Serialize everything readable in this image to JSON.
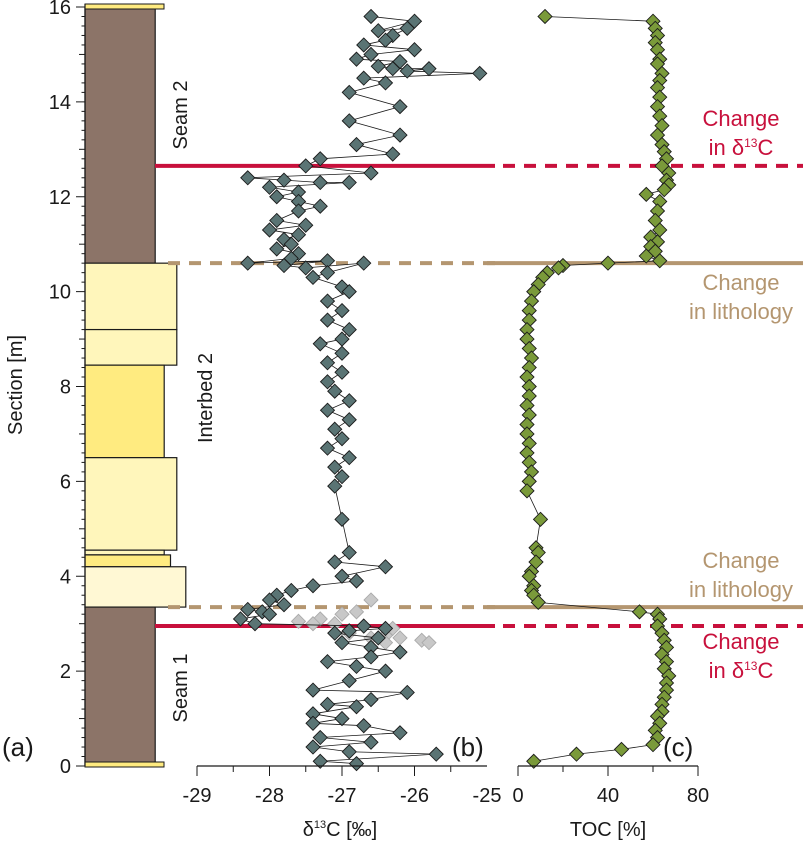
{
  "chart_data": [
    {
      "panel": "(a)",
      "type": "lithology-column",
      "ylabel": "Section [m]",
      "ylim": [
        0,
        16
      ],
      "yticks": [
        "0",
        "2",
        "4",
        "6",
        "8",
        "10",
        "12",
        "14",
        "16"
      ],
      "units": [
        {
          "label": "Seam 2",
          "bottom": 10.6,
          "top": 16.0,
          "width": 0.78,
          "color": "#8c7468"
        },
        {
          "label": "",
          "bottom": 9.2,
          "top": 10.6,
          "width": 1.02,
          "color": "#fff6bb"
        },
        {
          "label": "",
          "bottom": 8.45,
          "top": 9.2,
          "width": 1.02,
          "color": "#fff6bb"
        },
        {
          "label": "",
          "bottom": 6.5,
          "top": 8.45,
          "width": 0.88,
          "color": "#ffeb80"
        },
        {
          "label": "",
          "bottom": 4.55,
          "top": 6.5,
          "width": 1.02,
          "color": "#fff6bb"
        },
        {
          "label": "",
          "bottom": 4.45,
          "top": 4.55,
          "width": 0.88,
          "color": "#fff6bb"
        },
        {
          "label": "",
          "bottom": 4.2,
          "top": 4.45,
          "width": 0.95,
          "color": "#ffeb80"
        },
        {
          "label": "",
          "bottom": 3.35,
          "top": 4.2,
          "width": 1.12,
          "color": "#fff8d4"
        },
        {
          "label": "Seam 1",
          "bottom": 0.0,
          "top": 3.35,
          "width": 0.78,
          "color": "#8c7468"
        }
      ],
      "unit_labels": [
        "Seam 2",
        "Interbed 2",
        "Seam 1"
      ]
    },
    {
      "panel": "(b)",
      "type": "scatter",
      "xlabel": "δ13C [‰]",
      "xlim": [
        -29,
        -25
      ],
      "xticks": [
        "-29",
        "-28",
        "-27",
        "-26",
        "-25"
      ],
      "series": [
        {
          "color": "#5a7474",
          "points": [
            [
              -26.6,
              15.8
            ],
            [
              -26.0,
              15.7
            ],
            [
              -26.5,
              15.5
            ],
            [
              -26.1,
              15.55
            ],
            [
              -26.3,
              15.4
            ],
            [
              -26.4,
              15.3
            ],
            [
              -26.7,
              15.2
            ],
            [
              -26.0,
              15.1
            ],
            [
              -26.6,
              15.0
            ],
            [
              -26.8,
              14.9
            ],
            [
              -26.2,
              14.85
            ],
            [
              -26.5,
              14.75
            ],
            [
              -26.3,
              14.7
            ],
            [
              -25.8,
              14.7
            ],
            [
              -26.1,
              14.65
            ],
            [
              -25.1,
              14.6
            ],
            [
              -26.7,
              14.5
            ],
            [
              -26.4,
              14.4
            ],
            [
              -26.9,
              14.2
            ],
            [
              -26.2,
              13.9
            ],
            [
              -26.9,
              13.6
            ],
            [
              -26.2,
              13.3
            ],
            [
              -26.8,
              13.1
            ],
            [
              -26.3,
              12.9
            ],
            [
              -27.3,
              12.8
            ],
            [
              -27.5,
              12.65
            ],
            [
              -26.6,
              12.5
            ],
            [
              -28.3,
              12.4
            ],
            [
              -27.8,
              12.35
            ],
            [
              -27.3,
              12.3
            ],
            [
              -26.9,
              12.3
            ],
            [
              -28.0,
              12.2
            ],
            [
              -27.6,
              12.1
            ],
            [
              -27.9,
              12.0
            ],
            [
              -27.6,
              11.9
            ],
            [
              -27.3,
              11.8
            ],
            [
              -27.6,
              11.7
            ],
            [
              -27.9,
              11.5
            ],
            [
              -27.5,
              11.4
            ],
            [
              -28.0,
              11.3
            ],
            [
              -27.6,
              11.2
            ],
            [
              -27.8,
              11.1
            ],
            [
              -27.7,
              11.0
            ],
            [
              -27.9,
              10.9
            ],
            [
              -27.6,
              10.8
            ],
            [
              -27.7,
              10.7
            ],
            [
              -28.3,
              10.6
            ],
            [
              -27.2,
              10.65
            ],
            [
              -27.8,
              10.55
            ],
            [
              -27.5,
              10.5
            ],
            [
              -26.7,
              10.6
            ],
            [
              -27.2,
              10.4
            ],
            [
              -27.4,
              10.3
            ],
            [
              -27.0,
              10.1
            ],
            [
              -26.9,
              10.0
            ],
            [
              -27.2,
              9.8
            ],
            [
              -27.0,
              9.6
            ],
            [
              -27.2,
              9.4
            ],
            [
              -26.9,
              9.2
            ],
            [
              -27.0,
              9.0
            ],
            [
              -27.3,
              8.9
            ],
            [
              -27.0,
              8.7
            ],
            [
              -27.2,
              8.5
            ],
            [
              -27.0,
              8.3
            ],
            [
              -27.2,
              8.1
            ],
            [
              -27.1,
              7.9
            ],
            [
              -26.9,
              7.7
            ],
            [
              -27.2,
              7.5
            ],
            [
              -26.9,
              7.3
            ],
            [
              -27.1,
              7.1
            ],
            [
              -27.0,
              6.9
            ],
            [
              -27.2,
              6.7
            ],
            [
              -26.9,
              6.5
            ],
            [
              -27.1,
              6.3
            ],
            [
              -27.0,
              6.1
            ],
            [
              -27.1,
              5.9
            ],
            [
              -27.0,
              5.2
            ],
            [
              -26.9,
              4.5
            ],
            [
              -27.1,
              4.3
            ],
            [
              -26.4,
              4.2
            ],
            [
              -27.0,
              4.0
            ],
            [
              -26.8,
              3.9
            ],
            [
              -27.4,
              3.8
            ],
            [
              -27.7,
              3.7
            ],
            [
              -27.9,
              3.6
            ],
            [
              -28.0,
              3.5
            ],
            [
              -27.8,
              3.4
            ],
            [
              -28.3,
              3.3
            ],
            [
              -28.1,
              3.25
            ],
            [
              -28.0,
              3.2
            ],
            [
              -28.4,
              3.1
            ],
            [
              -28.2,
              3.0
            ],
            [
              -26.7,
              2.95
            ],
            [
              -26.4,
              2.9
            ],
            [
              -26.9,
              2.85
            ],
            [
              -27.1,
              2.8
            ],
            [
              -26.5,
              2.7
            ],
            [
              -27.0,
              2.6
            ],
            [
              -26.6,
              2.5
            ],
            [
              -26.2,
              2.4
            ],
            [
              -26.6,
              2.3
            ],
            [
              -27.2,
              2.2
            ],
            [
              -26.8,
              2.1
            ],
            [
              -26.4,
              2.0
            ],
            [
              -26.9,
              1.8
            ],
            [
              -27.4,
              1.6
            ],
            [
              -26.1,
              1.55
            ],
            [
              -26.6,
              1.4
            ],
            [
              -27.2,
              1.3
            ],
            [
              -26.8,
              1.25
            ],
            [
              -27.4,
              1.1
            ],
            [
              -27.0,
              1.0
            ],
            [
              -27.4,
              0.9
            ],
            [
              -26.7,
              0.85
            ],
            [
              -26.2,
              0.7
            ],
            [
              -27.3,
              0.6
            ],
            [
              -26.6,
              0.5
            ],
            [
              -27.4,
              0.4
            ],
            [
              -26.9,
              0.3
            ],
            [
              -25.7,
              0.25
            ],
            [
              -27.3,
              0.1
            ],
            [
              -26.8,
              0.05
            ]
          ]
        },
        {
          "color": "#c8c8c8",
          "points": [
            [
              -26.6,
              3.5
            ],
            [
              -26.8,
              3.25
            ],
            [
              -27.0,
              3.2
            ],
            [
              -27.3,
              3.1
            ],
            [
              -27.6,
              3.05
            ],
            [
              -27.4,
              3.0
            ],
            [
              -27.1,
              3.0
            ],
            [
              -26.7,
              2.95
            ],
            [
              -26.3,
              2.9
            ],
            [
              -26.9,
              2.8
            ],
            [
              -26.4,
              2.75
            ],
            [
              -26.2,
              2.7
            ],
            [
              -25.9,
              2.65
            ],
            [
              -25.8,
              2.6
            ],
            [
              -26.6,
              2.7
            ],
            [
              -26.4,
              2.6
            ]
          ]
        }
      ]
    },
    {
      "panel": "(c)",
      "type": "scatter",
      "xlabel": "TOC [%]",
      "xlim": [
        0,
        80
      ],
      "xticks": [
        "0",
        "40",
        "80"
      ],
      "series": [
        {
          "color": "#7a9a3a",
          "points": [
            [
              12,
              15.8
            ],
            [
              60,
              15.7
            ],
            [
              61,
              15.55
            ],
            [
              62,
              15.4
            ],
            [
              61,
              15.25
            ],
            [
              62,
              15.1
            ],
            [
              63,
              14.9
            ],
            [
              62,
              14.8
            ],
            [
              64,
              14.6
            ],
            [
              63,
              14.45
            ],
            [
              62,
              14.3
            ],
            [
              63,
              14.1
            ],
            [
              62,
              13.9
            ],
            [
              63,
              13.7
            ],
            [
              64,
              13.5
            ],
            [
              62,
              13.3
            ],
            [
              64,
              13.1
            ],
            [
              65,
              12.95
            ],
            [
              66,
              12.8
            ],
            [
              64,
              12.65
            ],
            [
              67,
              12.5
            ],
            [
              66,
              12.35
            ],
            [
              67,
              12.25
            ],
            [
              65,
              12.15
            ],
            [
              57,
              12.05
            ],
            [
              63,
              11.9
            ],
            [
              62,
              11.7
            ],
            [
              61,
              11.5
            ],
            [
              63,
              11.3
            ],
            [
              59,
              11.15
            ],
            [
              62,
              11.05
            ],
            [
              59,
              10.95
            ],
            [
              61,
              10.85
            ],
            [
              57,
              10.75
            ],
            [
              63,
              10.65
            ],
            [
              40,
              10.6
            ],
            [
              20,
              10.55
            ],
            [
              18,
              10.5
            ],
            [
              13,
              10.4
            ],
            [
              11,
              10.3
            ],
            [
              9,
              10.15
            ],
            [
              7,
              10.0
            ],
            [
              6,
              9.8
            ],
            [
              5,
              9.6
            ],
            [
              5,
              9.4
            ],
            [
              4,
              9.2
            ],
            [
              4,
              9.0
            ],
            [
              5,
              8.8
            ],
            [
              6,
              8.6
            ],
            [
              5,
              8.4
            ],
            [
              4,
              8.2
            ],
            [
              5,
              8.0
            ],
            [
              5,
              7.8
            ],
            [
              4,
              7.6
            ],
            [
              5,
              7.4
            ],
            [
              4,
              7.2
            ],
            [
              4,
              7.0
            ],
            [
              5,
              6.8
            ],
            [
              4,
              6.6
            ],
            [
              5,
              6.4
            ],
            [
              6,
              6.2
            ],
            [
              5,
              6.0
            ],
            [
              4,
              5.8
            ],
            [
              10,
              5.2
            ],
            [
              8,
              4.6
            ],
            [
              9,
              4.5
            ],
            [
              8,
              4.3
            ],
            [
              6,
              4.1
            ],
            [
              5,
              4.0
            ],
            [
              7,
              3.8
            ],
            [
              6,
              3.7
            ],
            [
              7,
              3.6
            ],
            [
              9,
              3.45
            ],
            [
              54,
              3.25
            ],
            [
              62,
              3.2
            ],
            [
              63,
              3.1
            ],
            [
              62,
              2.95
            ],
            [
              64,
              2.8
            ],
            [
              65,
              2.65
            ],
            [
              66,
              2.5
            ],
            [
              64,
              2.35
            ],
            [
              66,
              2.2
            ],
            [
              65,
              2.05
            ],
            [
              67,
              1.9
            ],
            [
              66,
              1.75
            ],
            [
              66,
              1.6
            ],
            [
              65,
              1.45
            ],
            [
              64,
              1.3
            ],
            [
              64,
              1.15
            ],
            [
              62,
              1.05
            ],
            [
              63,
              0.9
            ],
            [
              61,
              0.75
            ],
            [
              62,
              0.6
            ],
            [
              60,
              0.45
            ],
            [
              46,
              0.35
            ],
            [
              26,
              0.25
            ],
            [
              7,
              0.1
            ]
          ]
        }
      ]
    }
  ],
  "annotations": {
    "delta_top": {
      "depth": 12.65,
      "label_1": "Change",
      "label_2": "in δ13C",
      "color": "#c8103c"
    },
    "litho_top": {
      "depth": 10.6,
      "label_1": "Change",
      "label_2": "in lithology",
      "color": "#b49670"
    },
    "litho_bottom": {
      "depth": 3.35,
      "label_1": "Change",
      "label_2": "in lithology",
      "color": "#b49670"
    },
    "delta_bottom": {
      "depth": 2.95,
      "label_1": "Change",
      "label_2": "in δ13C",
      "color": "#c8103c"
    }
  },
  "panel_letters": {
    "a": "(a)",
    "b": "(b)",
    "c": "(c)"
  }
}
